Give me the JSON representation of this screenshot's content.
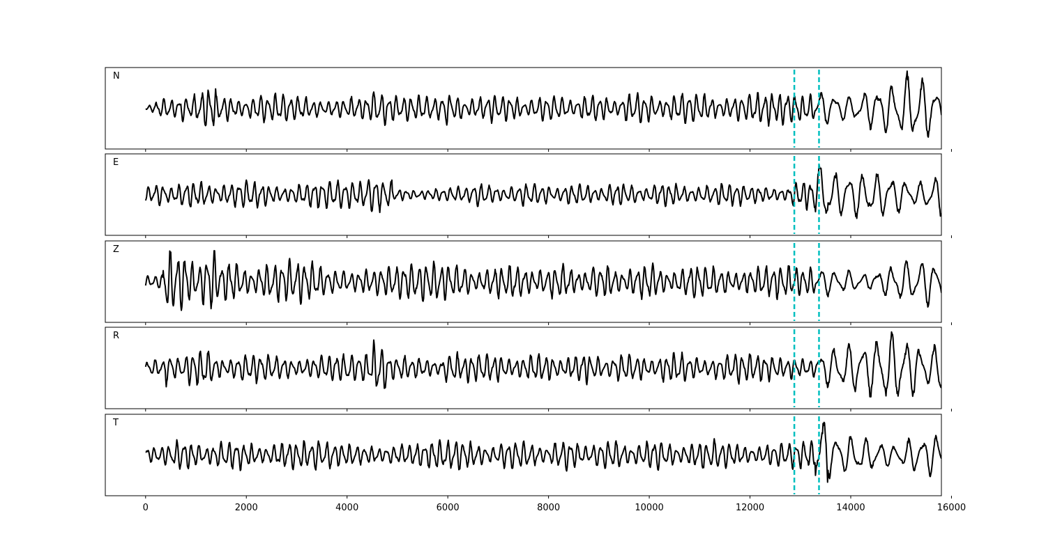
{
  "chart_data": {
    "type": "line",
    "xlim": [
      -800,
      15800
    ],
    "x_ticks": [
      0,
      2000,
      4000,
      6000,
      8000,
      10000,
      12000,
      14000,
      16000
    ],
    "x_tick_labels": [
      "0",
      "2000",
      "4000",
      "6000",
      "8000",
      "10000",
      "12000",
      "14000",
      "16000"
    ],
    "n_samples": 15800,
    "line_color": "#000000",
    "marker_color": "#00bfbf",
    "markers": [
      12880,
      13370
    ],
    "panels": [
      {
        "label": "N",
        "ylim": [
          -1.35,
          1.35
        ],
        "segments": [
          {
            "x0": 0,
            "x1": 200,
            "amp": 0.15
          },
          {
            "x0": 200,
            "x1": 700,
            "amp": 0.3
          },
          {
            "x0": 700,
            "x1": 1400,
            "amp": 0.65
          },
          {
            "x0": 1400,
            "x1": 4500,
            "amp": 0.45
          },
          {
            "x0": 4500,
            "x1": 4800,
            "amp": 0.55
          },
          {
            "x0": 4800,
            "x1": 5900,
            "amp": 0.38
          },
          {
            "x0": 5900,
            "x1": 6300,
            "amp": 0.7
          },
          {
            "x0": 6300,
            "x1": 9500,
            "amp": 0.42
          },
          {
            "x0": 9500,
            "x1": 12800,
            "amp": 0.48
          },
          {
            "x0": 12800,
            "x1": 13300,
            "amp": 0.5
          },
          {
            "x0": 13300,
            "x1": 14200,
            "amp": 0.75
          },
          {
            "x0": 14200,
            "x1": 15000,
            "amp": 0.85
          },
          {
            "x0": 15000,
            "x1": 15800,
            "amp": 1.0
          }
        ]
      },
      {
        "label": "E",
        "ylim": [
          -1.35,
          1.35
        ],
        "segments": [
          {
            "x0": 0,
            "x1": 200,
            "amp": 0.25
          },
          {
            "x0": 200,
            "x1": 4400,
            "amp": 0.42
          },
          {
            "x0": 4400,
            "x1": 4900,
            "amp": 0.6
          },
          {
            "x0": 4900,
            "x1": 6500,
            "amp": 0.25
          },
          {
            "x0": 6500,
            "x1": 12800,
            "amp": 0.35
          },
          {
            "x0": 12800,
            "x1": 13300,
            "amp": 0.6
          },
          {
            "x0": 13300,
            "x1": 13550,
            "amp": 1.2
          },
          {
            "x0": 13550,
            "x1": 15800,
            "amp": 0.7
          }
        ]
      },
      {
        "label": "Z",
        "ylim": [
          -1.35,
          1.35
        ],
        "segments": [
          {
            "x0": 0,
            "x1": 350,
            "amp": 0.3
          },
          {
            "x0": 350,
            "x1": 1400,
            "amp": 1.0
          },
          {
            "x0": 1400,
            "x1": 3500,
            "amp": 0.65
          },
          {
            "x0": 3500,
            "x1": 6500,
            "amp": 0.6
          },
          {
            "x0": 6500,
            "x1": 12800,
            "amp": 0.52
          },
          {
            "x0": 12800,
            "x1": 14500,
            "amp": 0.45
          },
          {
            "x0": 14500,
            "x1": 15800,
            "amp": 0.7
          }
        ]
      },
      {
        "label": "R",
        "ylim": [
          -1.35,
          1.35
        ],
        "segments": [
          {
            "x0": 0,
            "x1": 400,
            "amp": 0.25
          },
          {
            "x0": 400,
            "x1": 1400,
            "amp": 0.6
          },
          {
            "x0": 1400,
            "x1": 4500,
            "amp": 0.45
          },
          {
            "x0": 4500,
            "x1": 4800,
            "amp": 0.75
          },
          {
            "x0": 4800,
            "x1": 5900,
            "amp": 0.4
          },
          {
            "x0": 5900,
            "x1": 6200,
            "amp": 0.7
          },
          {
            "x0": 6200,
            "x1": 12800,
            "amp": 0.45
          },
          {
            "x0": 12800,
            "x1": 13300,
            "amp": 0.55
          },
          {
            "x0": 13300,
            "x1": 14500,
            "amp": 0.85
          },
          {
            "x0": 14500,
            "x1": 15800,
            "amp": 1.1
          }
        ]
      },
      {
        "label": "T",
        "ylim": [
          -1.35,
          1.35
        ],
        "segments": [
          {
            "x0": 0,
            "x1": 200,
            "amp": 0.3
          },
          {
            "x0": 200,
            "x1": 12800,
            "amp": 0.45
          },
          {
            "x0": 12800,
            "x1": 13300,
            "amp": 0.45
          },
          {
            "x0": 13300,
            "x1": 13550,
            "amp": 1.25
          },
          {
            "x0": 13550,
            "x1": 15800,
            "amp": 0.65
          }
        ]
      }
    ]
  }
}
